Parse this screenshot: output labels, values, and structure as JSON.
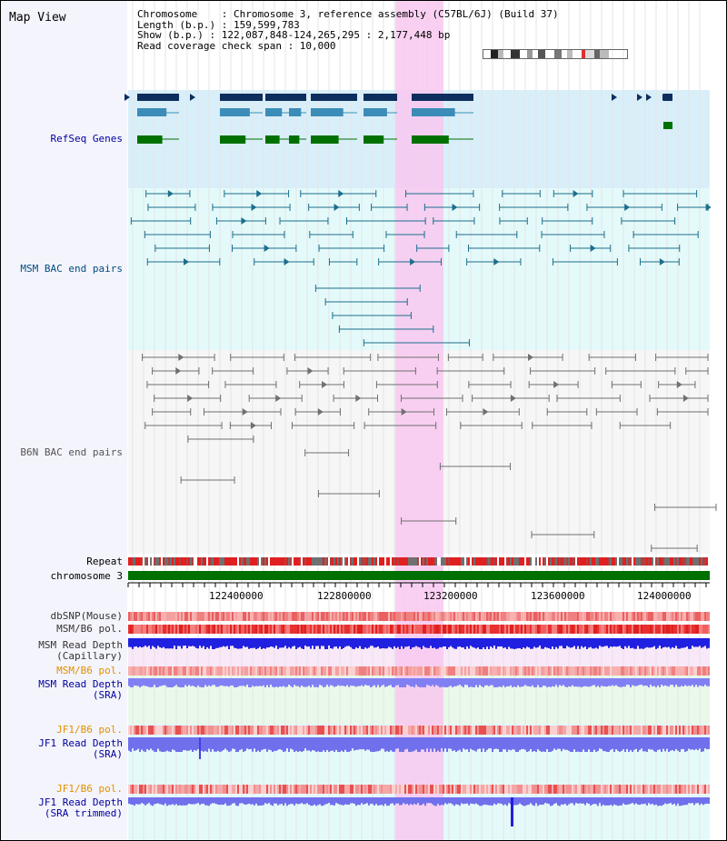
{
  "title": "Map View",
  "info": {
    "line1": "Chromosome    : Chromosome 3, reference assembly (C57BL/6J) (Build 37)",
    "line2": "Length (b.p.) : 159,599,783",
    "line3": "Show (b.p.) : 122,087,848-124,265,295 : 2,177,448 bp",
    "line4": "Read coverage check span : 10,000"
  },
  "tracks": {
    "refseq": "RefSeq Genes",
    "msm_bac": "MSM BAC end pairs",
    "b6n_bac": "B6N BAC end pairs",
    "repeat": "Repeat",
    "chromosome": "chromosome 3",
    "dbsnp": "dbSNP(Mouse)",
    "msm_b6_pol": "MSM/B6 pol.",
    "msm_depth_cap_1": "MSM Read Depth",
    "msm_depth_cap_2": "(Capillary)",
    "msm_b6_pol_2": "MSM/B6 pol.",
    "msm_depth_sra_1": "MSM Read Depth",
    "msm_depth_sra_2": "(SRA)",
    "jf1_pol_1": "JF1/B6 pol.",
    "jf1_depth_1": "JF1 Read Depth",
    "jf1_depth_2": "(SRA)",
    "jf1_pol_2": "JF1/B6 pol.",
    "jf1_trim_1": "JF1 Read Depth",
    "jf1_trim_2": "(SRA trimmed)"
  },
  "axis_ticks": [
    "122400000",
    "122800000",
    "123200000",
    "123600000",
    "124000000"
  ],
  "colors": {
    "refseq_dark": "#0e2e5e",
    "refseq_mid": "#3c8cb8",
    "refseq_green": "#007000",
    "msm_bac": "#1c6e8c",
    "b6n_bac": "#707070",
    "highlight": "#f8c8f0",
    "chromosome": "#007000",
    "depth_blue": "#2020e0",
    "label_blue": "#0000a0",
    "label_orange": "#e09000",
    "label_teal": "#004c80"
  }
}
